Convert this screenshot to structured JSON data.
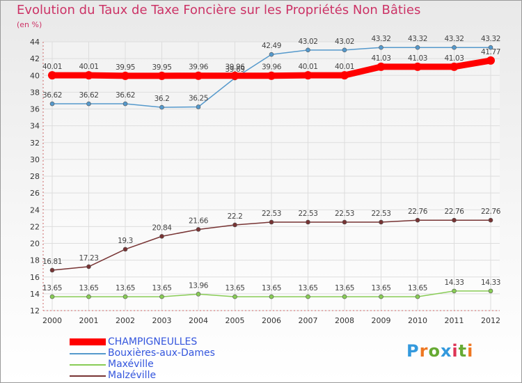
{
  "chart_data": {
    "type": "line",
    "title": "Evolution du Taux de Taxe Foncière sur les Propriétés Non Bâties",
    "subtitle": "(en %)",
    "categories": [
      "2000",
      "2001",
      "2002",
      "2003",
      "2004",
      "2005",
      "2006",
      "2007",
      "2008",
      "2009",
      "2010",
      "2011",
      "2012"
    ],
    "ylim": [
      12,
      44
    ],
    "yticks": [
      12,
      14,
      16,
      18,
      20,
      22,
      24,
      26,
      28,
      30,
      32,
      34,
      36,
      38,
      40,
      42,
      44
    ],
    "series": [
      {
        "name": "CHAMPIGNEULLES",
        "color": "#ff0000",
        "values": [
          40.01,
          40.01,
          39.95,
          39.95,
          39.96,
          39.96,
          39.96,
          40.01,
          40.01,
          41.03,
          41.03,
          41.03,
          41.77
        ],
        "labels": [
          "40.01",
          "40.01",
          "39.95",
          "39.95",
          "39.96",
          "39.96",
          "39.96",
          "40.01",
          "40.01",
          "41.03",
          "41.03",
          "41.03",
          "41.77"
        ]
      },
      {
        "name": "Bouxières-aux-Dames",
        "color": "#5599cc",
        "values": [
          36.62,
          36.62,
          36.62,
          36.2,
          36.25,
          39.69,
          42.49,
          43.02,
          43.02,
          43.32,
          43.32,
          43.32,
          43.32
        ],
        "labels": [
          "36.62",
          "36.62",
          "36.62",
          "36.2",
          "36.25",
          "39.69",
          "42.49",
          "43.02",
          "43.02",
          "43.32",
          "43.32",
          "43.32",
          "43.32"
        ]
      },
      {
        "name": "Maxéville",
        "color": "#88cc55",
        "values": [
          13.65,
          13.65,
          13.65,
          13.65,
          13.96,
          13.65,
          13.65,
          13.65,
          13.65,
          13.65,
          13.65,
          14.33,
          14.33
        ],
        "labels": [
          "13.65",
          "13.65",
          "13.65",
          "13.65",
          "13.96",
          "13.65",
          "13.65",
          "13.65",
          "13.65",
          "13.65",
          "13.65",
          "14.33",
          "14.33"
        ]
      },
      {
        "name": "Malzéville",
        "color": "#773333",
        "values": [
          16.81,
          17.23,
          19.3,
          20.84,
          21.66,
          22.2,
          22.53,
          22.53,
          22.53,
          22.53,
          22.76,
          22.76,
          22.76
        ],
        "labels": [
          "16.81",
          "17.23",
          "19.3",
          "20.84",
          "21.66",
          "22.2",
          "22.53",
          "22.53",
          "22.53",
          "22.53",
          "22.76",
          "22.76",
          "22.76"
        ]
      }
    ]
  },
  "legend": {
    "items": [
      {
        "label": "CHAMPIGNEULLES",
        "color": "#ff0000"
      },
      {
        "label": "Bouxières-aux-Dames",
        "color": "#5599cc"
      },
      {
        "label": "Maxéville",
        "color": "#88cc55"
      },
      {
        "label": "Malzéville",
        "color": "#773333"
      }
    ]
  },
  "brand": {
    "letters": [
      "P",
      "r",
      "o",
      "x",
      "i",
      "t",
      "i"
    ],
    "colors": [
      "#3399dd",
      "#ee7722",
      "#66aa33",
      "#3399dd",
      "#dd3355",
      "#66aa33",
      "#ee7722"
    ]
  }
}
